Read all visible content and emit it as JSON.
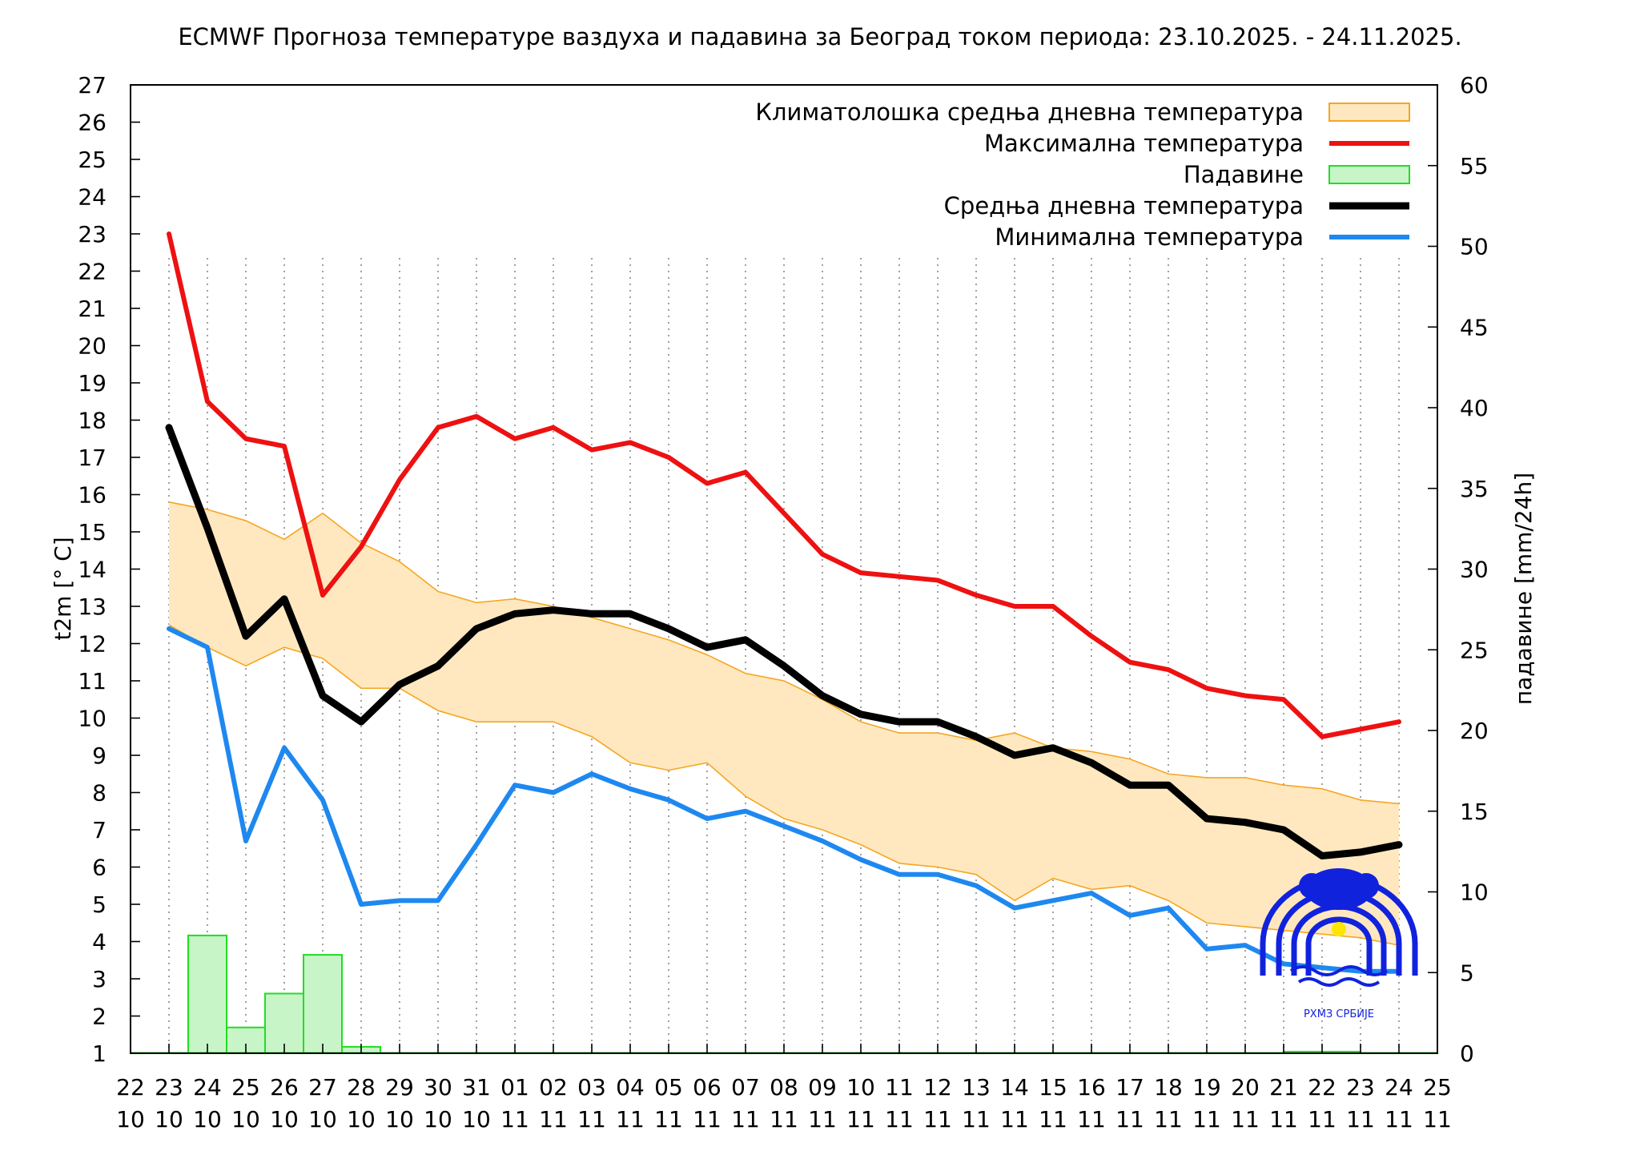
{
  "chart_data": {
    "type": "line",
    "title": "ECMWF Прогноза температуре ваздуха и падавина за Београд током периода: 23.10.2025. - 24.11.2025.",
    "ylabel": "t2m [° C]",
    "y2label": "падавине [mm/24h]",
    "ylim": [
      1,
      27
    ],
    "y2lim": [
      0,
      60
    ],
    "y_ticks": [
      1,
      2,
      3,
      4,
      5,
      6,
      7,
      8,
      9,
      10,
      11,
      12,
      13,
      14,
      15,
      16,
      17,
      18,
      19,
      20,
      21,
      22,
      23,
      24,
      25,
      26,
      27
    ],
    "y2_ticks": [
      0,
      5,
      10,
      15,
      20,
      25,
      30,
      35,
      40,
      45,
      50,
      55,
      60
    ],
    "x_ticks": [
      {
        "day": "22",
        "month": "10"
      },
      {
        "day": "23",
        "month": "10"
      },
      {
        "day": "24",
        "month": "10"
      },
      {
        "day": "25",
        "month": "10"
      },
      {
        "day": "26",
        "month": "10"
      },
      {
        "day": "27",
        "month": "10"
      },
      {
        "day": "28",
        "month": "10"
      },
      {
        "day": "29",
        "month": "10"
      },
      {
        "day": "30",
        "month": "10"
      },
      {
        "day": "31",
        "month": "10"
      },
      {
        "day": "01",
        "month": "11"
      },
      {
        "day": "02",
        "month": "11"
      },
      {
        "day": "03",
        "month": "11"
      },
      {
        "day": "04",
        "month": "11"
      },
      {
        "day": "05",
        "month": "11"
      },
      {
        "day": "06",
        "month": "11"
      },
      {
        "day": "07",
        "month": "11"
      },
      {
        "day": "08",
        "month": "11"
      },
      {
        "day": "09",
        "month": "11"
      },
      {
        "day": "10",
        "month": "11"
      },
      {
        "day": "11",
        "month": "11"
      },
      {
        "day": "12",
        "month": "11"
      },
      {
        "day": "13",
        "month": "11"
      },
      {
        "day": "14",
        "month": "11"
      },
      {
        "day": "15",
        "month": "11"
      },
      {
        "day": "16",
        "month": "11"
      },
      {
        "day": "17",
        "month": "11"
      },
      {
        "day": "18",
        "month": "11"
      },
      {
        "day": "19",
        "month": "11"
      },
      {
        "day": "20",
        "month": "11"
      },
      {
        "day": "21",
        "month": "11"
      },
      {
        "day": "22",
        "month": "11"
      },
      {
        "day": "23",
        "month": "11"
      },
      {
        "day": "24",
        "month": "11"
      },
      {
        "day": "25",
        "month": "11"
      }
    ],
    "xlim": [
      0,
      34
    ],
    "legend_position": "top-right",
    "grid": "vertical dotted lines",
    "legend": [
      {
        "key": "climatology",
        "label": "Климатолошка средња дневна температура",
        "style": "band",
        "color": "#ffe8bf",
        "edge": "#f5a623"
      },
      {
        "key": "max",
        "label": "Максимална температура",
        "style": "line",
        "color": "#ee1111"
      },
      {
        "key": "precip",
        "label": "Падавине",
        "style": "bar",
        "color": "#c8f5c8",
        "edge": "#22dd22"
      },
      {
        "key": "mean",
        "label": "Средња дневна температура",
        "style": "line",
        "color": "#000000"
      },
      {
        "key": "min",
        "label": "Минимална температура",
        "style": "line",
        "color": "#1e88f0"
      }
    ],
    "series": [
      {
        "key": "max",
        "name": "Максимална температура",
        "x": [
          1,
          2,
          3,
          4,
          5,
          6,
          7,
          8,
          9,
          10,
          11,
          12,
          13,
          14,
          15,
          16,
          17,
          18,
          19,
          20,
          21,
          22,
          23,
          24,
          25,
          26,
          27,
          28,
          29,
          30,
          31,
          32,
          33
        ],
        "values": [
          23.0,
          18.5,
          17.5,
          17.3,
          13.3,
          14.6,
          16.4,
          17.8,
          18.1,
          17.5,
          17.8,
          17.2,
          17.4,
          17.0,
          16.3,
          16.6,
          15.5,
          14.4,
          13.9,
          13.8,
          13.7,
          13.3,
          13.0,
          13.0,
          12.2,
          11.5,
          11.3,
          10.8,
          10.6,
          10.5,
          9.5,
          9.7,
          9.9
        ]
      },
      {
        "key": "mean",
        "name": "Средња дневна температура",
        "x": [
          1,
          2,
          3,
          4,
          5,
          6,
          7,
          8,
          9,
          10,
          11,
          12,
          13,
          14,
          15,
          16,
          17,
          18,
          19,
          20,
          21,
          22,
          23,
          24,
          25,
          26,
          27,
          28,
          29,
          30,
          31,
          32,
          33
        ],
        "values": [
          17.8,
          15.1,
          12.2,
          13.2,
          10.6,
          9.9,
          10.9,
          11.4,
          12.4,
          12.8,
          12.9,
          12.8,
          12.8,
          12.4,
          11.9,
          12.1,
          11.4,
          10.6,
          10.1,
          9.9,
          9.9,
          9.5,
          9.0,
          9.2,
          8.8,
          8.2,
          8.2,
          7.3,
          7.2,
          7.0,
          6.3,
          6.4,
          6.6
        ]
      },
      {
        "key": "min",
        "name": "Минимална температура",
        "x": [
          1,
          2,
          3,
          4,
          5,
          6,
          7,
          8,
          9,
          10,
          11,
          12,
          13,
          14,
          15,
          16,
          17,
          18,
          19,
          20,
          21,
          22,
          23,
          24,
          25,
          26,
          27,
          28,
          29,
          30,
          31,
          32,
          33
        ],
        "values": [
          12.4,
          11.9,
          6.7,
          9.2,
          7.8,
          5.0,
          5.1,
          5.1,
          6.6,
          8.2,
          8.0,
          8.5,
          8.1,
          7.8,
          7.3,
          7.5,
          7.1,
          6.7,
          6.2,
          5.8,
          5.8,
          5.5,
          4.9,
          5.1,
          5.3,
          4.7,
          4.9,
          3.8,
          3.9,
          3.4,
          3.3,
          3.2,
          3.2
        ]
      }
    ],
    "climatology_band": {
      "name": "Климатолошка средња дневна температура",
      "x": [
        1,
        2,
        3,
        4,
        5,
        6,
        7,
        8,
        9,
        10,
        11,
        12,
        13,
        14,
        15,
        16,
        17,
        18,
        19,
        20,
        21,
        22,
        23,
        24,
        25,
        26,
        27,
        28,
        29,
        30,
        31,
        32,
        33
      ],
      "upper": [
        15.8,
        15.6,
        15.3,
        14.8,
        15.5,
        14.7,
        14.2,
        13.4,
        13.1,
        13.2,
        13.0,
        12.7,
        12.4,
        12.1,
        11.7,
        11.2,
        11.0,
        10.5,
        9.9,
        9.6,
        9.6,
        9.4,
        9.6,
        9.2,
        9.1,
        8.9,
        8.5,
        8.4,
        8.4,
        8.2,
        8.1,
        7.8,
        7.7
      ],
      "lower": [
        12.5,
        11.9,
        11.4,
        11.9,
        11.6,
        10.8,
        10.8,
        10.2,
        9.9,
        9.9,
        9.9,
        9.5,
        8.8,
        8.6,
        8.8,
        7.9,
        7.3,
        7.0,
        6.6,
        6.1,
        6.0,
        5.8,
        5.1,
        5.7,
        5.4,
        5.5,
        5.1,
        4.5,
        4.4,
        4.3,
        4.2,
        4.1,
        3.9
      ]
    },
    "precipitation": {
      "name": "Падавине",
      "unit": "mm/24h",
      "bars": [
        {
          "x": 2,
          "value": 7.3
        },
        {
          "x": 3,
          "value": 1.6
        },
        {
          "x": 4,
          "value": 3.7
        },
        {
          "x": 5,
          "value": 6.1
        },
        {
          "x": 6,
          "value": 0.4
        },
        {
          "x": 30.5,
          "value": 0.1
        },
        {
          "x": 31.5,
          "value": 0.1
        }
      ]
    },
    "logo": {
      "text": "РХМЗ СРБИЈЕ",
      "position": "bottom-right",
      "color": "#1122dd"
    }
  }
}
